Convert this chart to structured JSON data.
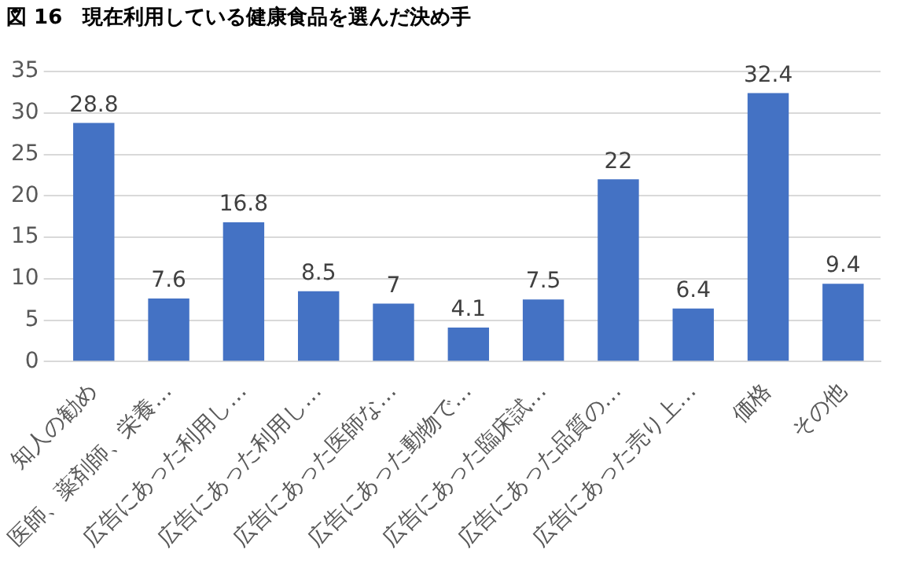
{
  "chart_data": {
    "type": "bar",
    "title": "図 16　現在利用している健康食品を選んだ決め手",
    "categories": [
      "知人の勧め",
      "医師、薬剤師、栄養…",
      "広告にあった利用し…",
      "広告にあった利用し…",
      "広告にあった医師な…",
      "広告にあった動物で…",
      "広告にあった臨床試…",
      "広告にあった品質の…",
      "広告にあった売り上…",
      "価格",
      "その他"
    ],
    "values": [
      28.8,
      7.6,
      16.8,
      8.5,
      7,
      4.1,
      7.5,
      22,
      6.4,
      32.4,
      9.4
    ],
    "color": "#4472c4",
    "ylim": [
      0,
      35
    ],
    "yticks": [
      0,
      5,
      10,
      15,
      20,
      25,
      30,
      35
    ],
    "grid": "y",
    "data_labels": true
  }
}
